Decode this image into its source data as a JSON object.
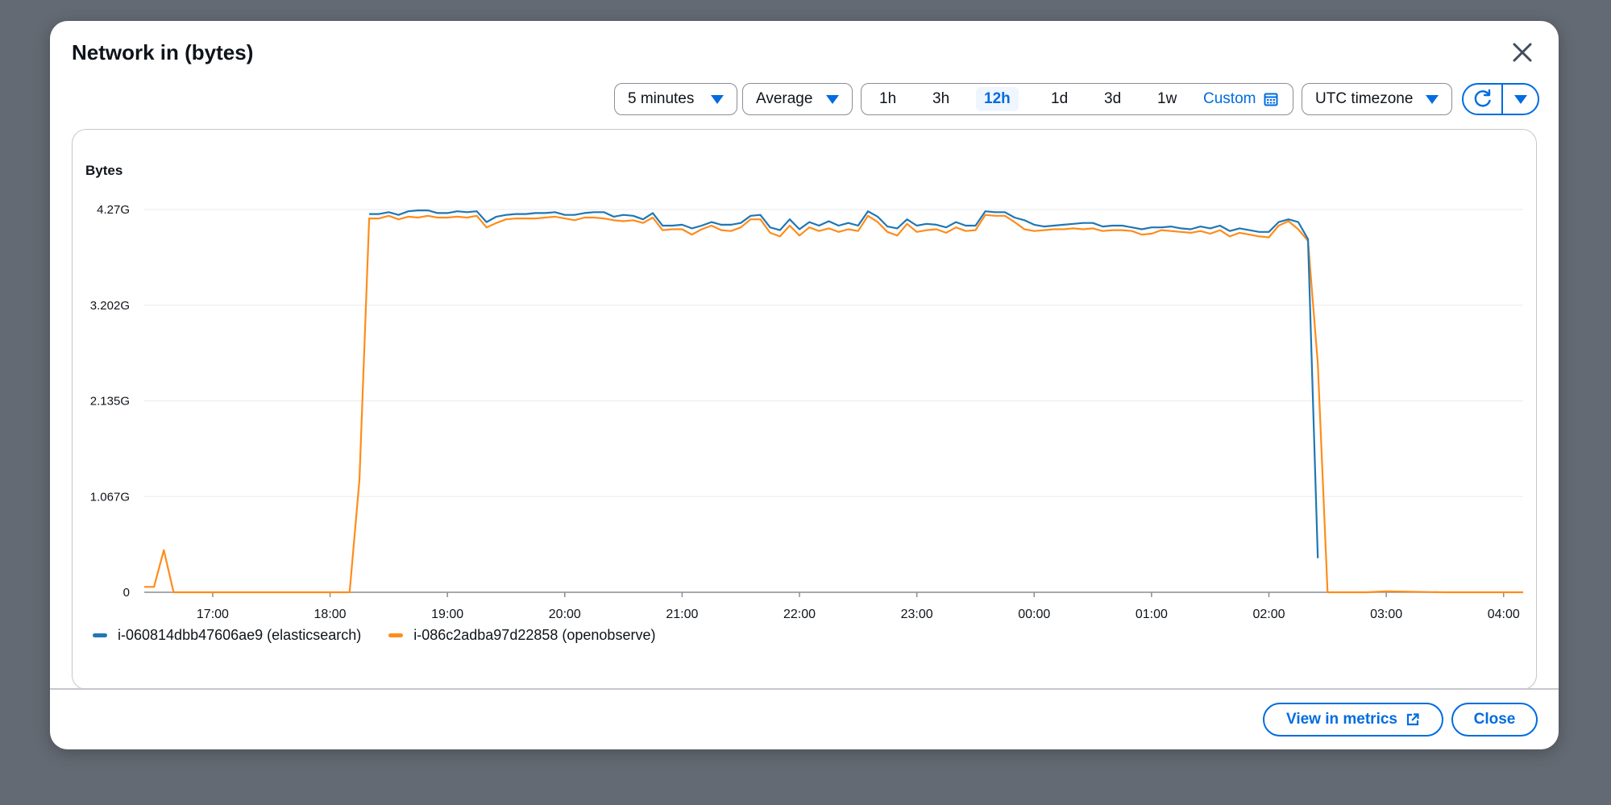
{
  "modal": {
    "title": "Network in (bytes)"
  },
  "toolbar": {
    "period": "5 minutes",
    "statistic": "Average",
    "ranges": [
      "1h",
      "3h",
      "12h",
      "1d",
      "3d",
      "1w"
    ],
    "active_range": "12h",
    "custom_label": "Custom",
    "timezone": "UTC timezone"
  },
  "footer": {
    "view_in_metrics_label": "View in metrics",
    "close_label": "Close"
  },
  "colors": {
    "accent": "#006ce0",
    "series_blue": "#1f77b4",
    "series_orange": "#ff8c1a"
  },
  "chart_data": {
    "type": "line",
    "title": "",
    "xlabel": "",
    "ylabel": "Bytes",
    "y_ticks": [
      "0",
      "1.067G",
      "2.135G",
      "3.202G",
      "4.27G"
    ],
    "y_tick_values": [
      0,
      1.067,
      2.135,
      3.202,
      4.27
    ],
    "y_unit": "G",
    "ylim": [
      0,
      4.27
    ],
    "x_ticks": [
      "17:00",
      "18:00",
      "19:00",
      "20:00",
      "21:00",
      "22:00",
      "23:00",
      "00:00",
      "01:00",
      "02:00",
      "03:00",
      "04:00"
    ],
    "xlim": [
      "16:25",
      "04:10"
    ],
    "grid": true,
    "legend_position": "bottom-left",
    "series": [
      {
        "name": "i-060814dbb47606ae9 (elasticsearch)",
        "color": "#1f77b4",
        "x": [
          "18:20",
          "18:25",
          "18:30",
          "18:35",
          "18:40",
          "18:45",
          "18:50",
          "18:55",
          "19:00",
          "19:05",
          "19:10",
          "19:15",
          "19:20",
          "19:25",
          "19:30",
          "19:35",
          "19:40",
          "19:45",
          "19:50",
          "19:55",
          "20:00",
          "20:05",
          "20:10",
          "20:15",
          "20:20",
          "20:25",
          "20:30",
          "20:35",
          "20:40",
          "20:45",
          "20:50",
          "20:55",
          "21:00",
          "21:05",
          "21:10",
          "21:15",
          "21:20",
          "21:25",
          "21:30",
          "21:35",
          "21:40",
          "21:45",
          "21:50",
          "21:55",
          "22:00",
          "22:05",
          "22:10",
          "22:15",
          "22:20",
          "22:25",
          "22:30",
          "22:35",
          "22:40",
          "22:45",
          "22:50",
          "22:55",
          "23:00",
          "23:05",
          "23:10",
          "23:15",
          "23:20",
          "23:25",
          "23:30",
          "23:35",
          "23:40",
          "23:45",
          "23:50",
          "23:55",
          "00:00",
          "00:05",
          "00:10",
          "00:15",
          "00:20",
          "00:25",
          "00:30",
          "00:35",
          "00:40",
          "00:45",
          "00:50",
          "00:55",
          "01:00",
          "01:05",
          "01:10",
          "01:15",
          "01:20",
          "01:25",
          "01:30",
          "01:35",
          "01:40",
          "01:45",
          "01:50",
          "01:55",
          "02:00",
          "02:05",
          "02:10",
          "02:15",
          "02:20",
          "02:25"
        ],
        "y": [
          4.22,
          4.22,
          4.24,
          4.21,
          4.25,
          4.26,
          4.26,
          4.23,
          4.23,
          4.25,
          4.24,
          4.25,
          4.13,
          4.19,
          4.21,
          4.22,
          4.22,
          4.23,
          4.23,
          4.24,
          4.21,
          4.21,
          4.23,
          4.24,
          4.24,
          4.19,
          4.21,
          4.2,
          4.16,
          4.23,
          4.09,
          4.09,
          4.1,
          4.06,
          4.09,
          4.13,
          4.1,
          4.1,
          4.12,
          4.2,
          4.21,
          4.07,
          4.04,
          4.16,
          4.05,
          4.13,
          4.09,
          4.14,
          4.09,
          4.12,
          4.09,
          4.25,
          4.19,
          4.08,
          4.06,
          4.16,
          4.09,
          4.11,
          4.1,
          4.07,
          4.13,
          4.09,
          4.09,
          4.25,
          4.24,
          4.24,
          4.18,
          4.15,
          4.1,
          4.08,
          4.09,
          4.1,
          4.11,
          4.12,
          4.12,
          4.08,
          4.09,
          4.09,
          4.07,
          4.05,
          4.07,
          4.07,
          4.08,
          4.06,
          4.05,
          4.08,
          4.06,
          4.09,
          4.03,
          4.06,
          4.04,
          4.02,
          4.02,
          4.13,
          4.16,
          4.13,
          3.94,
          0.38
        ]
      },
      {
        "name": "i-086c2adba97d22858 (openobserve)",
        "color": "#ff8c1a",
        "x": [
          "16:25",
          "16:30",
          "16:35",
          "16:40",
          "16:45",
          "17:00",
          "17:30",
          "18:00",
          "18:10",
          "18:15",
          "18:20",
          "18:25",
          "18:30",
          "18:35",
          "18:40",
          "18:45",
          "18:50",
          "18:55",
          "19:00",
          "19:05",
          "19:10",
          "19:15",
          "19:20",
          "19:25",
          "19:30",
          "19:35",
          "19:40",
          "19:45",
          "19:50",
          "19:55",
          "20:00",
          "20:05",
          "20:10",
          "20:15",
          "20:20",
          "20:25",
          "20:30",
          "20:35",
          "20:40",
          "20:45",
          "20:50",
          "20:55",
          "21:00",
          "21:05",
          "21:10",
          "21:15",
          "21:20",
          "21:25",
          "21:30",
          "21:35",
          "21:40",
          "21:45",
          "21:50",
          "21:55",
          "22:00",
          "22:05",
          "22:10",
          "22:15",
          "22:20",
          "22:25",
          "22:30",
          "22:35",
          "22:40",
          "22:45",
          "22:50",
          "22:55",
          "23:00",
          "23:05",
          "23:10",
          "23:15",
          "23:20",
          "23:25",
          "23:30",
          "23:35",
          "23:40",
          "23:45",
          "23:50",
          "23:55",
          "00:00",
          "00:05",
          "00:10",
          "00:15",
          "00:20",
          "00:25",
          "00:30",
          "00:35",
          "00:40",
          "00:45",
          "00:50",
          "00:55",
          "01:00",
          "01:05",
          "01:10",
          "01:15",
          "01:20",
          "01:25",
          "01:30",
          "01:35",
          "01:40",
          "01:45",
          "01:50",
          "01:55",
          "02:00",
          "02:05",
          "02:10",
          "02:15",
          "02:20",
          "02:25",
          "02:30",
          "02:40",
          "02:50",
          "03:00",
          "03:30",
          "04:00",
          "04:10"
        ],
        "y": [
          0.06,
          0.06,
          0.47,
          0.0,
          0.0,
          0.0,
          0.0,
          0.0,
          0.0,
          1.25,
          4.17,
          4.17,
          4.2,
          4.16,
          4.19,
          4.18,
          4.2,
          4.18,
          4.18,
          4.19,
          4.18,
          4.2,
          4.07,
          4.12,
          4.16,
          4.17,
          4.17,
          4.17,
          4.18,
          4.19,
          4.17,
          4.15,
          4.18,
          4.18,
          4.17,
          4.15,
          4.14,
          4.15,
          4.12,
          4.18,
          4.04,
          4.05,
          4.05,
          3.99,
          4.05,
          4.09,
          4.04,
          4.03,
          4.07,
          4.16,
          4.16,
          4.01,
          3.97,
          4.09,
          3.98,
          4.07,
          4.03,
          4.06,
          4.02,
          4.05,
          4.03,
          4.2,
          4.13,
          4.02,
          3.98,
          4.11,
          4.02,
          4.04,
          4.05,
          4.01,
          4.07,
          4.03,
          4.04,
          4.21,
          4.2,
          4.2,
          4.13,
          4.05,
          4.03,
          4.04,
          4.05,
          4.05,
          4.06,
          4.05,
          4.06,
          4.03,
          4.04,
          4.04,
          4.03,
          3.99,
          4.0,
          4.04,
          4.03,
          4.02,
          4.01,
          4.03,
          4.0,
          4.04,
          3.97,
          4.01,
          3.99,
          3.97,
          3.96,
          4.09,
          4.14,
          4.05,
          3.92,
          2.55,
          0.0,
          0.0,
          0.0,
          0.01,
          0.0,
          0.0,
          0.0
        ]
      }
    ]
  }
}
